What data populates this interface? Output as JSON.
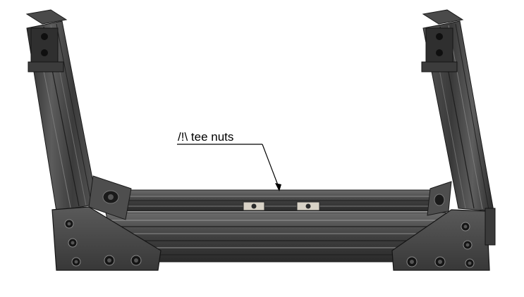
{
  "callout": {
    "label": "/!\\ tee nuts"
  },
  "colors": {
    "background": "#ffffff",
    "extrusion_dark": "#3c3c3c",
    "extrusion_mid": "#5a5a5a",
    "extrusion_light": "#7a7a7a",
    "plate": "#4a4a4a",
    "tee_nut": "#d8d2c6",
    "leader": "#000000"
  }
}
